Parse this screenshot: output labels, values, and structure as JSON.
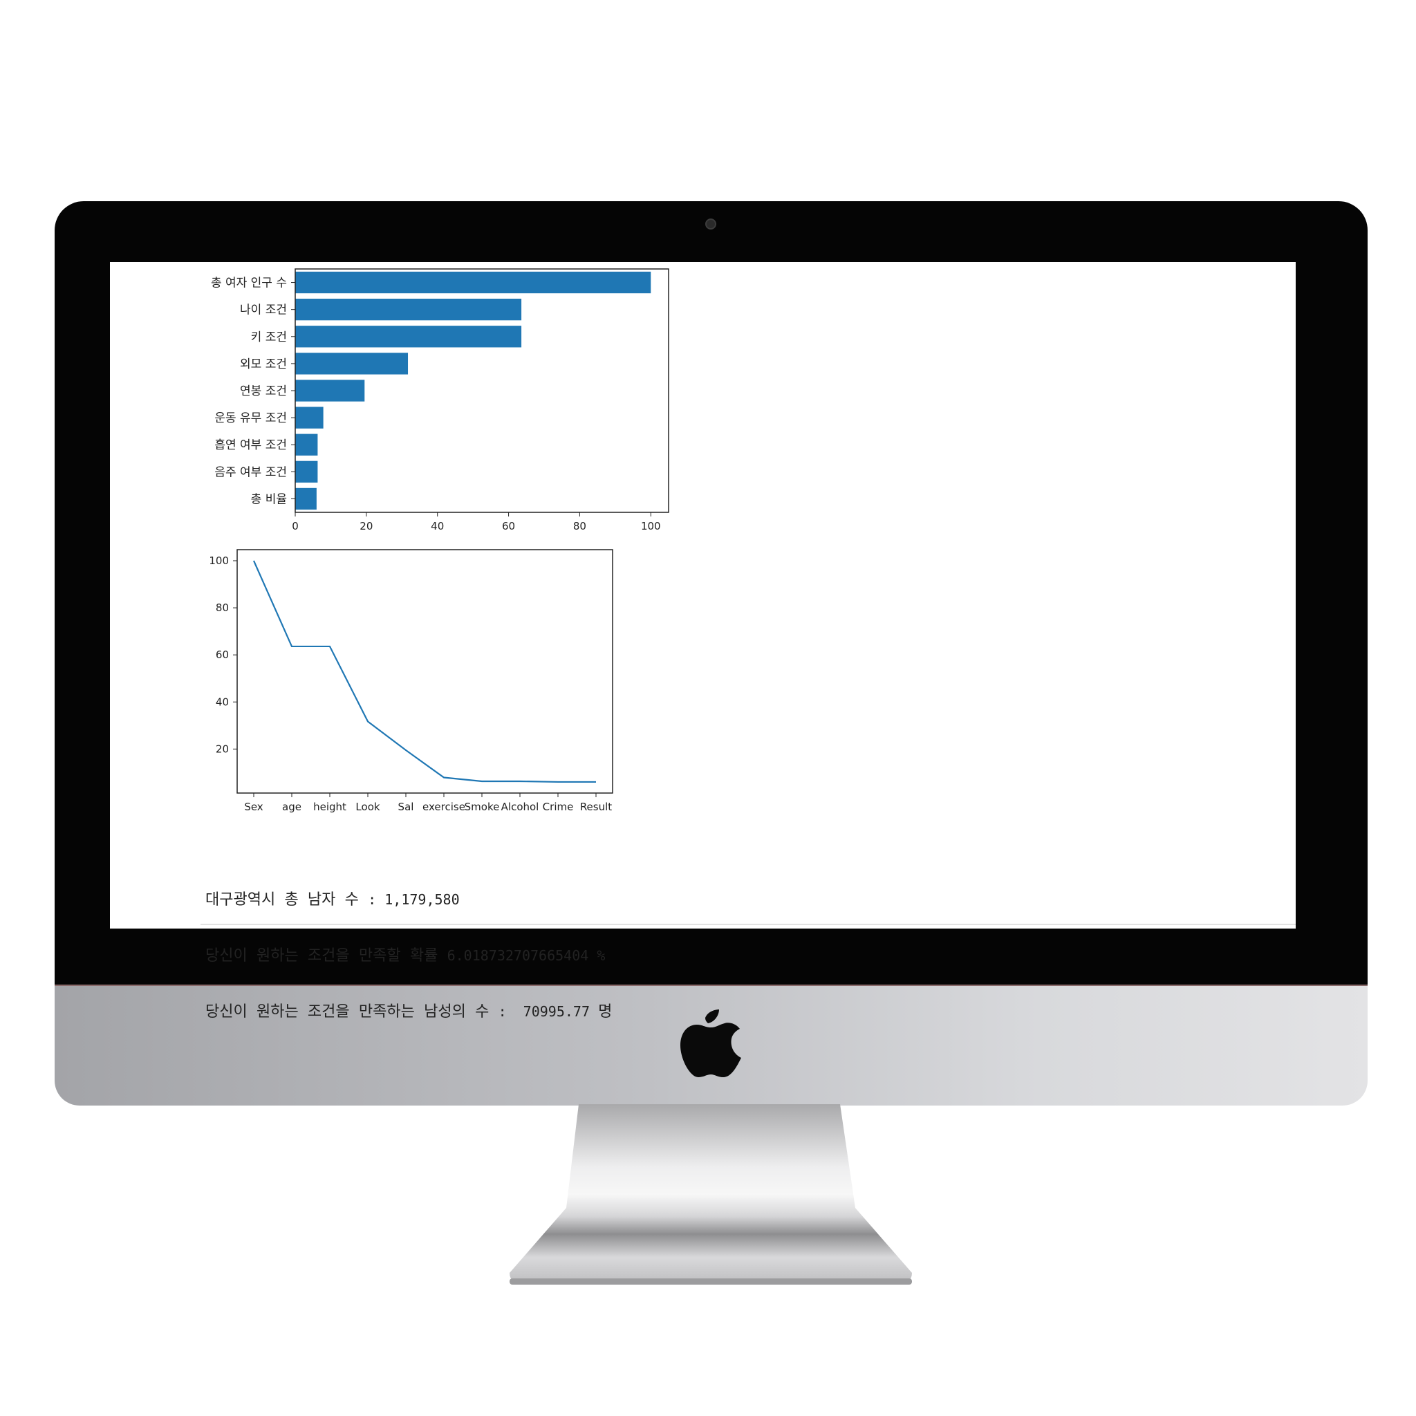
{
  "bar_chart": {
    "type": "bar",
    "orientation": "horizontal",
    "categories": [
      "총 여자 인구 수",
      "나이 조건",
      "키 조건",
      "외모 조건",
      "연봉 조건",
      "운동 유무 조건",
      "흡연 여부 조건",
      "음주 여부 조건",
      "총 비율"
    ],
    "values": [
      100,
      63.6,
      63.6,
      31.7,
      19.5,
      7.9,
      6.3,
      6.3,
      6.0
    ],
    "xlim": [
      0,
      105
    ],
    "xticks": [
      "0",
      "20",
      "40",
      "60",
      "80",
      "100"
    ],
    "color": "#1f77b4"
  },
  "line_chart": {
    "type": "line",
    "x": [
      "Sex",
      "age",
      "height",
      "Look",
      "Sal",
      "exercise",
      "Smoke",
      "Alcohol",
      "Crime",
      "Result"
    ],
    "values": [
      100,
      63.6,
      63.6,
      31.7,
      19.5,
      7.9,
      6.3,
      6.3,
      6.02,
      6.02
    ],
    "ylim": [
      1.3,
      104.7
    ],
    "yticks": [
      "20",
      "40",
      "60",
      "80",
      "100"
    ],
    "color": "#1f77b4"
  },
  "chart_data": [
    {
      "type": "bar",
      "categories": [
        "총 여자 인구 수",
        "나이 조건",
        "키 조건",
        "외모 조건",
        "연봉 조건",
        "운동 유무 조건",
        "흡연 여부 조건",
        "음주 여부 조건",
        "총 비율"
      ],
      "values": [
        100,
        63.6,
        63.6,
        31.7,
        19.5,
        7.9,
        6.3,
        6.3,
        6.0
      ],
      "xlim": [
        0,
        105
      ],
      "title": "",
      "xlabel": "",
      "ylabel": ""
    },
    {
      "type": "line",
      "categories": [
        "Sex",
        "age",
        "height",
        "Look",
        "Sal",
        "exercise",
        "Smoke",
        "Alcohol",
        "Crime",
        "Result"
      ],
      "values": [
        100,
        63.6,
        63.6,
        31.7,
        19.5,
        7.9,
        6.3,
        6.3,
        6.02,
        6.02
      ],
      "ylim": [
        1.3,
        104.7
      ],
      "title": "",
      "xlabel": "",
      "ylabel": ""
    }
  ],
  "output": {
    "line1_label": "대구광역시 총 남자 수 ",
    "line1_value": ": 1,179,580",
    "line2_label": "당신이 원하는 조건을 만족할 확률 ",
    "line2_value": "6.018732707665404 %",
    "line3_label": "당신이 원하는 조건을 만족하는 남성의 수 ",
    "line3_value": ":  70995.77 ",
    "line3_unit": "명"
  }
}
